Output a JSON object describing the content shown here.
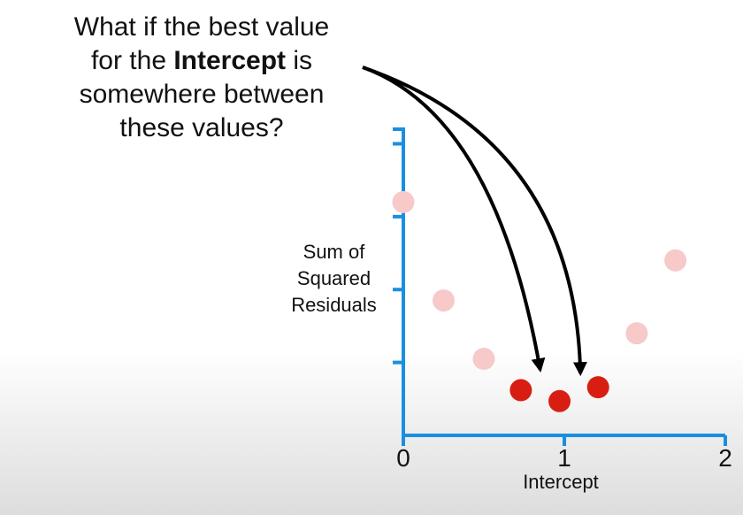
{
  "annotation": {
    "line1": "What if the best value",
    "line2_pre": "for the ",
    "line2_bold": "Intercept",
    "line2_post": " is",
    "line3": "somewhere between",
    "line4": "these values?"
  },
  "colors": {
    "axis": "#1a8fe0",
    "highlight_point": "#d81e12",
    "faded_point": "#f7c9c9",
    "arrow": "#000000"
  },
  "chart_data": {
    "type": "scatter",
    "title": "",
    "xlabel": "Intercept",
    "ylabel_lines": [
      "Sum of",
      "Squared",
      "Residuals"
    ],
    "xlim": [
      0,
      2
    ],
    "ylim": [
      0,
      4.2
    ],
    "x_ticks": [
      "0",
      "1",
      "2"
    ],
    "y_tick_values": [
      1,
      2,
      3,
      4
    ],
    "y_ticks_labeled": false,
    "grid": false,
    "points": [
      {
        "x": 0.0,
        "y": 3.2,
        "highlighted": false
      },
      {
        "x": 0.25,
        "y": 1.85,
        "highlighted": false
      },
      {
        "x": 0.5,
        "y": 1.05,
        "highlighted": false
      },
      {
        "x": 0.73,
        "y": 0.62,
        "highlighted": true
      },
      {
        "x": 0.97,
        "y": 0.47,
        "highlighted": true
      },
      {
        "x": 1.21,
        "y": 0.66,
        "highlighted": true
      },
      {
        "x": 1.45,
        "y": 1.4,
        "highlighted": false
      },
      {
        "x": 1.69,
        "y": 2.4,
        "highlighted": false
      }
    ],
    "arrows": [
      {
        "target": {
          "x": 0.85,
          "y": 0.9
        }
      },
      {
        "target": {
          "x": 1.1,
          "y": 0.85
        }
      }
    ]
  }
}
